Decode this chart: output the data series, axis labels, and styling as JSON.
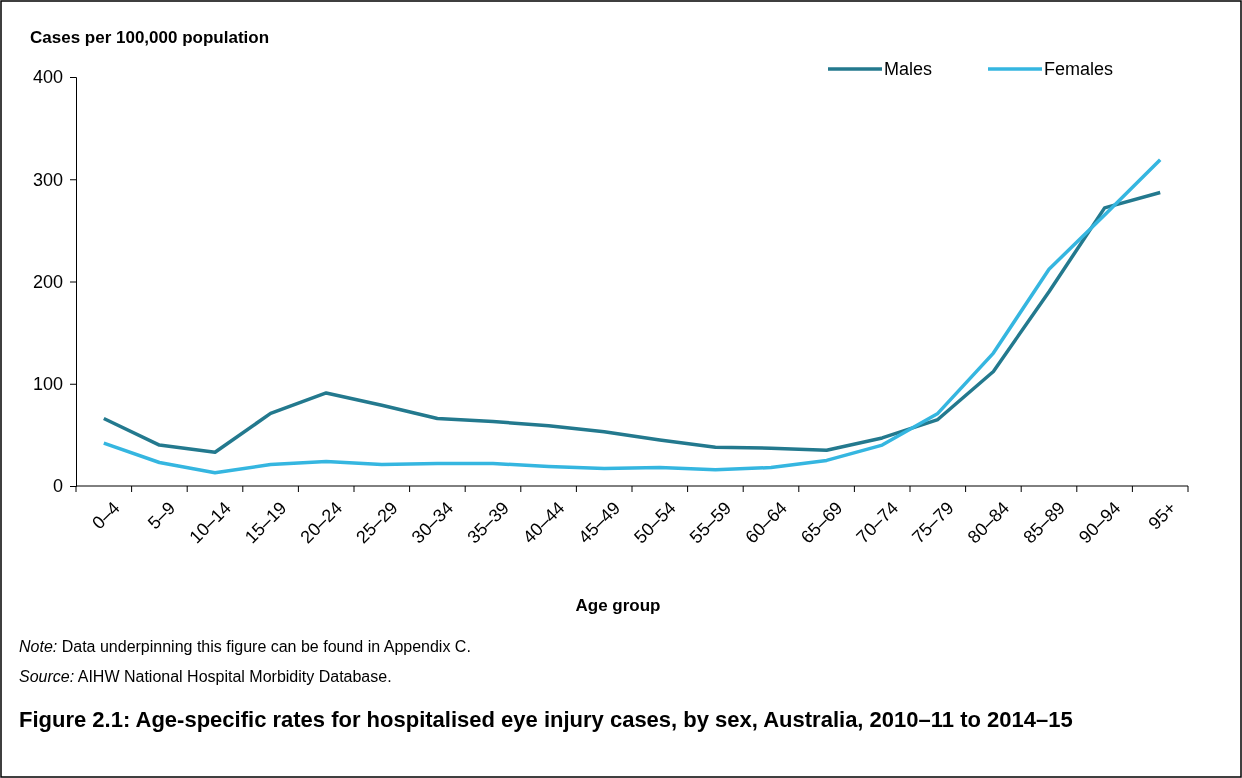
{
  "chart_data": {
    "type": "line",
    "title": "Figure 2.1: Age-specific rates for hospitalised eye injury cases, by sex, Australia, 2010–11 to 2014–15",
    "xlabel": "Age group",
    "ylabel": "Cases per 100,000 population",
    "categories": [
      "0–4",
      "5–9",
      "10–14",
      "15–19",
      "20–24",
      "25–29",
      "30–34",
      "35–39",
      "40–44",
      "45–49",
      "50–54",
      "55–59",
      "60–64",
      "65–69",
      "70–74",
      "75–79",
      "80–84",
      "85–89",
      "90–94",
      "95+"
    ],
    "series": [
      {
        "name": "Males",
        "color": "#23798e",
        "values": [
          66,
          40,
          33,
          71,
          91,
          79,
          66,
          63,
          59,
          53,
          45,
          38,
          37,
          35,
          47,
          65,
          112,
          190,
          272,
          287
        ]
      },
      {
        "name": "Females",
        "color": "#35b6e0",
        "values": [
          42,
          23,
          13,
          21,
          24,
          21,
          22,
          22,
          19,
          17,
          18,
          16,
          18,
          25,
          40,
          71,
          130,
          212,
          265,
          319
        ]
      }
    ],
    "ylim": [
      0,
      400
    ],
    "yticks": [
      0,
      100,
      200,
      300,
      400
    ],
    "grid": false,
    "legend": "top right",
    "marker": "none",
    "line_style": "solid",
    "annotations": [
      "Note: Data underpinning this figure can be found in Appendix C.",
      "Source: AIHW National Hospital Morbidity Database."
    ]
  }
}
